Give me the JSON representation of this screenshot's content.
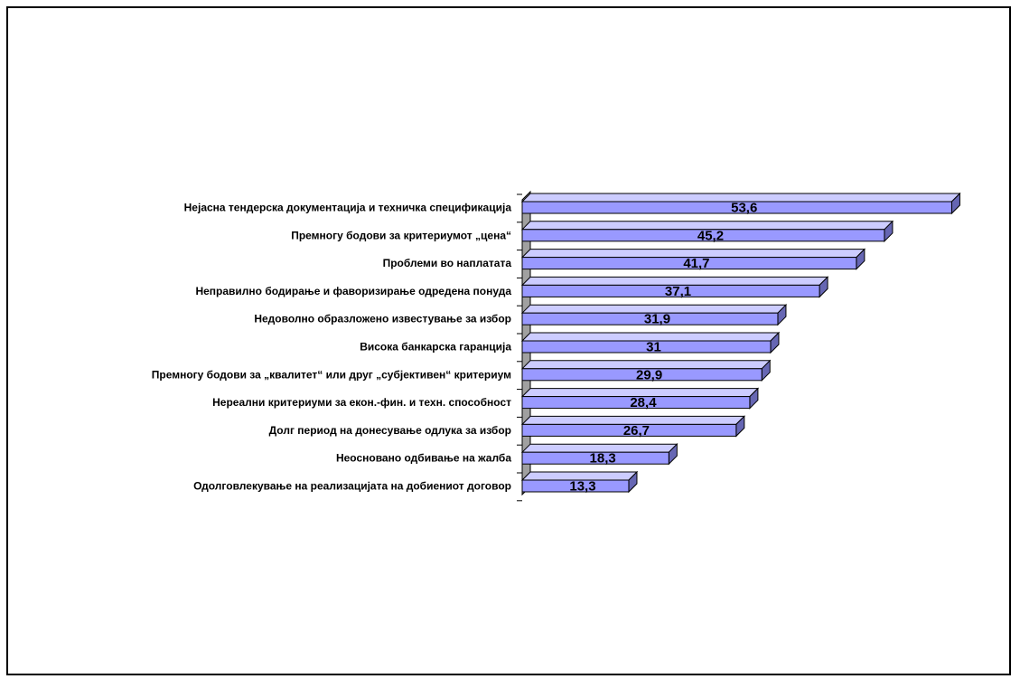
{
  "chart_data": {
    "type": "bar",
    "orientation": "horizontal",
    "style": "3d",
    "categories": [
      "Нејасна тендерска документација и техничка спецификација",
      "Премногу бодови за критериумот „цена“",
      "Проблеми во наплатата",
      "Неправилно бодирање и фаворизирање одредена понуда",
      "Недоволно образложено известување за избор",
      "Висока банкарска гаранција",
      "Премногу бодови за „квалитет“ или друг „субјективен“ критериум",
      "Нереални критериуми за екон.-фин. и техн. способност",
      "Долг период на донесување одлука за избор",
      "Неосновано одбивање на жалба",
      "Одолговлекување на реализацијата на добиениот договор"
    ],
    "values": [
      53.6,
      45.2,
      41.7,
      37.1,
      31.9,
      31,
      29.9,
      28.4,
      26.7,
      18.3,
      13.3
    ],
    "value_labels": [
      "53,6",
      "45,2",
      "41,7",
      "37,1",
      "31,9",
      "31",
      "29,9",
      "28,4",
      "26,7",
      "18,3",
      "13,3"
    ],
    "title": "",
    "xlabel": "",
    "ylabel": "",
    "xlim": [
      0,
      55
    ],
    "grid": false,
    "legend": "none",
    "colors": {
      "bar_front": "#9999FF",
      "bar_top": "#CCCCFF",
      "bar_side": "#6666B3",
      "outline": "#000000",
      "axis_wall": "#A0A0A0"
    }
  }
}
